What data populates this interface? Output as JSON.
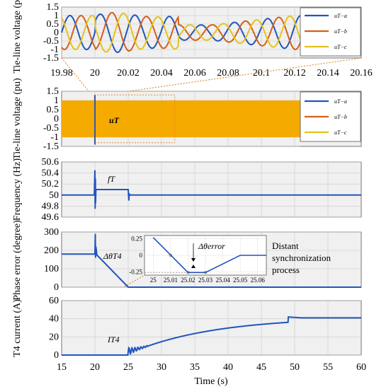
{
  "colors": {
    "blue": "#2255bb",
    "orange": "#d45f1a",
    "yellow": "#e6c21a",
    "fill": "#f5aa00",
    "plot_bg": "#f0f0f0",
    "annot": "#e07b10"
  },
  "chart_data": [
    {
      "type": "line",
      "id": "zoom-voltage",
      "ylabel": "Tie-line voltage (pu)",
      "xlim": [
        19.98,
        20.16
      ],
      "ylim": [
        -1.5,
        1.5
      ],
      "xticks": [
        "19.98",
        "20",
        "20.02",
        "20.04",
        "20.06",
        "20.08",
        "20.1",
        "20.12",
        "20.14",
        "20.16"
      ],
      "yticks": [
        "1.5",
        "1",
        "0.5",
        "0",
        "-0.5",
        "-1",
        "-1.5"
      ],
      "legend": [
        "uT−a",
        "uT−b",
        "uT−c"
      ],
      "legend_position": "right",
      "series": [
        {
          "name": "uT−a",
          "color": "blue",
          "frequency_hz": 50,
          "amplitude_pu": 1.0
        },
        {
          "name": "uT−b",
          "color": "orange",
          "frequency_hz": 50,
          "amplitude_pu": 1.0
        },
        {
          "name": "uT−c",
          "color": "yellow",
          "frequency_hz": 50,
          "amplitude_pu": 1.0
        }
      ]
    },
    {
      "type": "area",
      "id": "voltage",
      "ylabel": "Tie-line voltage (pu)",
      "xlim": [
        15,
        60
      ],
      "ylim": [
        -1.5,
        1.5
      ],
      "yticks": [
        "1.5",
        "1",
        "0.5",
        "0",
        "-0.5",
        "-1",
        "-1.5"
      ],
      "legend": [
        "uT−a",
        "uT−b",
        "uT−c"
      ],
      "legend_position": "right",
      "envelope_pu": [
        -1,
        1
      ],
      "annotation": "uT"
    },
    {
      "type": "line",
      "id": "frequency",
      "ylabel": "Frequency (Hz)",
      "xlim": [
        15,
        60
      ],
      "ylim": [
        49.6,
        50.6
      ],
      "yticks": [
        "50.6",
        "50.4",
        "50.2",
        "50",
        "49.8",
        "49.6"
      ],
      "annotation": "fT",
      "x": [
        15,
        19.9,
        20,
        20.03,
        20.07,
        20.1,
        20.15,
        20.3,
        25,
        25.1,
        25.15,
        25.3,
        60
      ],
      "y": [
        50,
        50,
        50.45,
        49.75,
        50.3,
        49.85,
        50.1,
        50.1,
        50.1,
        49.9,
        50.02,
        50,
        50
      ]
    },
    {
      "type": "line",
      "id": "phase-error",
      "ylabel": "Phase error (degree)",
      "xlim": [
        15,
        60
      ],
      "ylim": [
        0,
        300
      ],
      "yticks": [
        "300",
        "200",
        "100",
        "0"
      ],
      "annotation": "ΔθT4",
      "x": [
        15,
        20,
        20.05,
        20.1,
        20.15,
        20.3,
        25,
        60
      ],
      "y": [
        180,
        180,
        290,
        160,
        220,
        175,
        0,
        0
      ],
      "inset": {
        "xlim": [
          24.995,
          25.065
        ],
        "ylim": [
          -0.3,
          0.3
        ],
        "xticks": [
          "25",
          "25.01",
          "25.02",
          "25.03",
          "25.04",
          "25.05",
          "25.06"
        ],
        "yticks": [
          "0.25",
          "0",
          "-0.25"
        ],
        "x": [
          25,
          25.02,
          25.03,
          25.05,
          25.065
        ],
        "y": [
          0.27,
          -0.26,
          -0.26,
          0,
          0
        ],
        "annotation": "Δθerror"
      }
    },
    {
      "type": "line",
      "id": "current",
      "ylabel": "T4 current (A)",
      "xlabel": "Time (s)",
      "xlim": [
        15,
        60
      ],
      "ylim": [
        0,
        60
      ],
      "xticks": [
        "15",
        "20",
        "25",
        "30",
        "35",
        "40",
        "45",
        "50",
        "55",
        "60"
      ],
      "yticks": [
        "60",
        "40",
        "20",
        "0"
      ],
      "annotation": "IT4",
      "x": [
        15,
        25,
        25.5,
        28,
        30,
        35,
        40,
        45,
        49,
        51,
        60
      ],
      "y": [
        0,
        0,
        6,
        10,
        16,
        25,
        32,
        38,
        42,
        41,
        41
      ]
    }
  ],
  "side_note": {
    "line1": "Distant",
    "line2": "synchronization",
    "line3": "process"
  }
}
